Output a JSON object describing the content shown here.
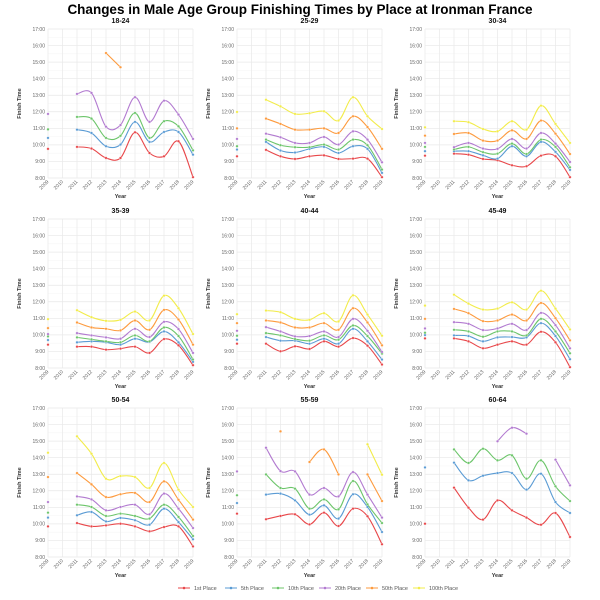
{
  "chart_data": {
    "type": "line",
    "title": "Changes in Male Age Group Finishing Times by Place at Ironman France",
    "xlabel": "Year",
    "ylabel": "Finish Time",
    "x": [
      2009,
      2010,
      2011,
      2012,
      2013,
      2014,
      2015,
      2016,
      2017,
      2018,
      2019
    ],
    "ylim": [
      8,
      17
    ],
    "y_ticks": [
      "8:00",
      "9:00",
      "10:00",
      "11:00",
      "12:00",
      "13:00",
      "14:00",
      "15:00",
      "16:00",
      "17:00"
    ],
    "y_unit": "hours",
    "grid": true,
    "legend_placement": "bottom",
    "series_names": [
      "1st Place",
      "5th Place",
      "10th Place",
      "20th Place",
      "50th Place",
      "100th Place"
    ],
    "series_colors": [
      "#e8474a",
      "#5a9bd4",
      "#6cc56a",
      "#b27ad0",
      "#fd9a3d",
      "#f2ec4a"
    ],
    "panels": [
      {
        "title": "18-24",
        "series": [
          {
            "name": "1st Place",
            "values": [
              9.76,
              null,
              9.88,
              9.78,
              9.21,
              9.21,
              10.76,
              9.51,
              9.31,
              10.22,
              8.05
            ]
          },
          {
            "name": "5th Place",
            "values": [
              10.42,
              null,
              10.92,
              10.72,
              9.92,
              10.02,
              11.39,
              10.18,
              10.78,
              10.78,
              9.41
            ]
          },
          {
            "name": "10th Place",
            "values": [
              10.94,
              null,
              11.69,
              11.59,
              10.42,
              10.55,
              11.93,
              10.42,
              11.43,
              11.12,
              9.67
            ]
          },
          {
            "name": "20th Place",
            "values": [
              11.87,
              null,
              13.08,
              13.14,
              11.1,
              11.2,
              12.88,
              11.39,
              12.67,
              11.83,
              10.36
            ]
          },
          {
            "name": "50th Place",
            "values": [
              null,
              null,
              null,
              null,
              15.55,
              14.69,
              null,
              null,
              null,
              null,
              null
            ]
          },
          {
            "name": "100th Place",
            "values": [
              null,
              null,
              null,
              null,
              null,
              null,
              null,
              null,
              null,
              null,
              null
            ]
          }
        ]
      },
      {
        "title": "25-29",
        "series": [
          {
            "name": "1st Place",
            "values": [
              9.31,
              null,
              9.7,
              9.31,
              9.15,
              9.31,
              9.37,
              9.15,
              9.17,
              9.17,
              8.05
            ]
          },
          {
            "name": "5th Place",
            "values": [
              9.72,
              null,
              10.18,
              9.66,
              9.54,
              9.76,
              9.88,
              9.51,
              9.92,
              9.76,
              8.31
            ]
          },
          {
            "name": "10th Place",
            "values": [
              9.92,
              null,
              10.32,
              9.98,
              9.86,
              9.86,
              10.02,
              9.72,
              10.32,
              9.98,
              8.51
            ]
          },
          {
            "name": "20th Place",
            "values": [
              10.36,
              null,
              10.68,
              10.46,
              10.12,
              10.12,
              10.48,
              10.02,
              10.82,
              10.32,
              8.95
            ]
          },
          {
            "name": "50th Place",
            "values": [
              11.0,
              null,
              11.59,
              11.27,
              10.92,
              10.92,
              11.0,
              10.72,
              11.73,
              11.08,
              9.76
            ]
          },
          {
            "name": "100th Place",
            "values": [
              11.99,
              null,
              12.73,
              12.33,
              11.87,
              11.91,
              12.03,
              11.47,
              12.88,
              11.73,
              10.96
            ]
          }
        ]
      },
      {
        "title": "30-34",
        "series": [
          {
            "name": "1st Place",
            "values": [
              9.35,
              null,
              9.47,
              9.41,
              9.15,
              9.07,
              8.77,
              8.71,
              9.35,
              9.31,
              8.05
            ]
          },
          {
            "name": "5th Place",
            "values": [
              9.62,
              null,
              9.62,
              9.62,
              9.37,
              9.17,
              9.92,
              9.31,
              10.18,
              9.58,
              8.49
            ]
          },
          {
            "name": "10th Place",
            "values": [
              9.88,
              null,
              9.72,
              9.88,
              9.56,
              9.47,
              10.08,
              9.45,
              10.32,
              9.88,
              8.65
            ]
          },
          {
            "name": "20th Place",
            "values": [
              10.12,
              null,
              9.86,
              10.12,
              9.78,
              9.76,
              10.36,
              9.78,
              10.72,
              10.08,
              8.97
            ]
          },
          {
            "name": "50th Place",
            "values": [
              10.56,
              null,
              10.66,
              10.72,
              10.26,
              10.26,
              10.88,
              10.36,
              11.47,
              10.68,
              9.45
            ]
          },
          {
            "name": "100th Place",
            "values": [
              11.06,
              null,
              11.43,
              11.37,
              10.96,
              10.82,
              11.43,
              10.92,
              12.37,
              11.27,
              10.12
            ]
          }
        ]
      },
      {
        "title": "35-39",
        "series": [
          {
            "name": "1st Place",
            "values": [
              9.41,
              null,
              9.29,
              9.29,
              9.11,
              9.17,
              9.29,
              8.91,
              9.75,
              9.37,
              8.17
            ]
          },
          {
            "name": "5th Place",
            "values": [
              9.69,
              null,
              9.55,
              9.61,
              9.55,
              9.41,
              9.77,
              9.57,
              10.21,
              9.55,
              8.37
            ]
          },
          {
            "name": "10th Place",
            "values": [
              9.91,
              null,
              9.85,
              9.73,
              9.61,
              9.55,
              9.97,
              9.61,
              10.45,
              9.93,
              8.51
            ]
          },
          {
            "name": "20th Place",
            "values": [
              10.05,
              null,
              10.11,
              9.97,
              9.85,
              9.77,
              10.37,
              9.87,
              10.79,
              10.35,
              8.91
            ]
          },
          {
            "name": "50th Place",
            "values": [
              10.41,
              null,
              10.75,
              10.45,
              10.37,
              10.27,
              10.87,
              10.31,
              11.51,
              10.93,
              9.41
            ]
          },
          {
            "name": "100th Place",
            "values": [
              10.95,
              null,
              11.49,
              11.07,
              10.85,
              10.91,
              11.41,
              10.87,
              12.37,
              11.61,
              10.05
            ]
          }
        ]
      },
      {
        "title": "40-44",
        "series": [
          {
            "name": "1st Place",
            "values": [
              9.47,
              null,
              9.47,
              9.01,
              9.31,
              9.15,
              9.61,
              9.29,
              9.81,
              9.35,
              8.21
            ]
          },
          {
            "name": "5th Place",
            "values": [
              9.71,
              null,
              9.87,
              9.65,
              9.65,
              9.47,
              9.77,
              9.47,
              10.37,
              9.61,
              8.51
            ]
          },
          {
            "name": "10th Place",
            "values": [
              9.95,
              null,
              10.11,
              9.97,
              9.75,
              9.65,
              9.97,
              9.71,
              10.57,
              9.93,
              8.87
            ]
          },
          {
            "name": "20th Place",
            "values": [
              10.25,
              null,
              10.47,
              10.21,
              9.91,
              9.93,
              10.21,
              9.87,
              10.97,
              10.25,
              8.97
            ]
          },
          {
            "name": "50th Place",
            "values": [
              10.71,
              null,
              10.87,
              10.75,
              10.45,
              10.45,
              10.71,
              10.31,
              11.61,
              10.75,
              9.37
            ]
          },
          {
            "name": "100th Place",
            "values": [
              11.25,
              null,
              11.47,
              11.37,
              10.97,
              10.91,
              11.31,
              10.81,
              12.39,
              11.23,
              9.95
            ]
          }
        ]
      },
      {
        "title": "45-49",
        "series": [
          {
            "name": "1st Place",
            "values": [
              9.79,
              null,
              9.79,
              9.61,
              9.19,
              9.41,
              9.61,
              9.41,
              10.19,
              9.55,
              8.05
            ]
          },
          {
            "name": "5th Place",
            "values": [
              9.99,
              null,
              9.97,
              9.93,
              9.61,
              9.85,
              9.87,
              9.85,
              10.71,
              9.93,
              8.53
            ]
          },
          {
            "name": "10th Place",
            "values": [
              10.13,
              null,
              10.31,
              10.21,
              9.89,
              10.21,
              10.21,
              9.97,
              10.97,
              10.21,
              8.89
            ]
          },
          {
            "name": "20th Place",
            "values": [
              10.39,
              null,
              10.77,
              10.67,
              10.29,
              10.39,
              10.67,
              10.29,
              11.33,
              10.59,
              9.19
            ]
          },
          {
            "name": "50th Place",
            "values": [
              10.97,
              null,
              11.57,
              11.31,
              10.83,
              10.87,
              11.23,
              10.87,
              11.93,
              11.01,
              9.67
            ]
          },
          {
            "name": "100th Place",
            "values": [
              11.77,
              null,
              12.43,
              11.89,
              11.53,
              11.59,
              11.97,
              11.53,
              12.67,
              11.59,
              10.33
            ]
          }
        ]
      },
      {
        "title": "50-54",
        "series": [
          {
            "name": "1st Place",
            "values": [
              9.85,
              null,
              10.05,
              9.85,
              9.91,
              10.01,
              9.85,
              9.55,
              9.81,
              9.85,
              8.64
            ]
          },
          {
            "name": "5th Place",
            "values": [
              10.38,
              null,
              10.52,
              10.72,
              10.15,
              10.36,
              10.22,
              9.95,
              10.92,
              10.11,
              9.07
            ]
          },
          {
            "name": "10th Place",
            "values": [
              10.68,
              null,
              11.16,
              11.02,
              10.48,
              10.62,
              10.48,
              10.32,
              11.16,
              10.42,
              9.27
            ]
          },
          {
            "name": "20th Place",
            "values": [
              11.32,
              null,
              11.66,
              11.48,
              10.82,
              11.02,
              11.16,
              10.58,
              11.83,
              10.92,
              9.75
            ]
          },
          {
            "name": "50th Place",
            "values": [
              12.83,
              null,
              13.07,
              12.39,
              11.62,
              11.79,
              11.87,
              11.32,
              12.57,
              11.46,
              10.26
            ]
          },
          {
            "name": "100th Place",
            "values": [
              14.3,
              null,
              15.29,
              14.24,
              12.73,
              12.89,
              12.83,
              12.17,
              13.68,
              12.07,
              11.02
            ]
          }
        ]
      },
      {
        "title": "55-59",
        "series": [
          {
            "name": "1st Place",
            "values": [
              10.62,
              null,
              10.28,
              10.48,
              10.58,
              9.97,
              10.68,
              9.87,
              10.92,
              10.46,
              8.77
            ]
          },
          {
            "name": "5th Place",
            "values": [
              11.26,
              null,
              11.77,
              11.83,
              11.42,
              10.56,
              11.12,
              10.32,
              11.79,
              11.02,
              9.51
            ]
          },
          {
            "name": "10th Place",
            "values": [
              11.73,
              null,
              12.99,
              12.17,
              12.13,
              10.92,
              11.48,
              10.88,
              12.59,
              11.18,
              10.05
            ]
          },
          {
            "name": "20th Place",
            "values": [
              13.17,
              null,
              14.6,
              13.19,
              13.17,
              11.77,
              12.17,
              11.66,
              13.13,
              11.77,
              10.38
            ]
          },
          {
            "name": "50th Place",
            "values": [
              null,
              null,
              null,
              15.59,
              null,
              13.74,
              14.5,
              12.99,
              null,
              12.99,
              11.38
            ]
          },
          {
            "name": "100th Place",
            "values": [
              null,
              null,
              null,
              null,
              null,
              null,
              null,
              null,
              null,
              14.81,
              12.97
            ]
          }
        ]
      },
      {
        "title": "60-64",
        "series": [
          {
            "name": "1st Place",
            "values": [
              10.01,
              null,
              12.19,
              10.98,
              10.26,
              11.42,
              10.82,
              10.38,
              9.95,
              10.66,
              9.21
            ]
          },
          {
            "name": "5th Place",
            "values": [
              13.41,
              null,
              13.7,
              12.63,
              12.91,
              13.07,
              13.07,
              12.07,
              13.03,
              11.32,
              10.66
            ]
          },
          {
            "name": "10th Place",
            "values": [
              null,
              null,
              14.5,
              13.68,
              14.54,
              13.84,
              14.14,
              12.73,
              13.84,
              12.27,
              11.38
            ]
          },
          {
            "name": "20th Place",
            "values": [
              null,
              null,
              null,
              null,
              null,
              14.99,
              15.81,
              15.45,
              null,
              13.88,
              12.33
            ]
          },
          {
            "name": "50th Place",
            "values": [
              null,
              null,
              null,
              null,
              null,
              null,
              null,
              null,
              null,
              null,
              null
            ]
          },
          {
            "name": "100th Place",
            "values": [
              null,
              null,
              null,
              null,
              null,
              null,
              null,
              null,
              null,
              null,
              null
            ]
          }
        ]
      }
    ]
  }
}
